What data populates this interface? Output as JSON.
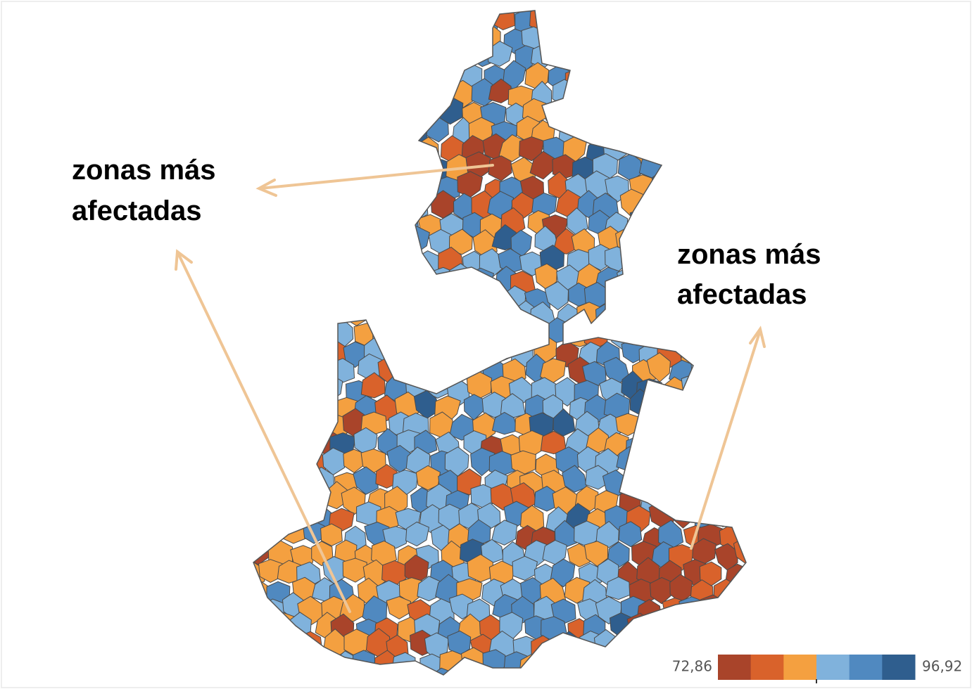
{
  "annotations": [
    {
      "text": "zonas más afectadas"
    },
    {
      "text": "zonas más afectadas"
    }
  ],
  "legend": {
    "min_label": "72,86",
    "max_label": "96,92",
    "colors": [
      "#a9442a",
      "#d9622b",
      "#f4a040",
      "#80b2dc",
      "#5089c0",
      "#2f5e8e"
    ]
  }
}
